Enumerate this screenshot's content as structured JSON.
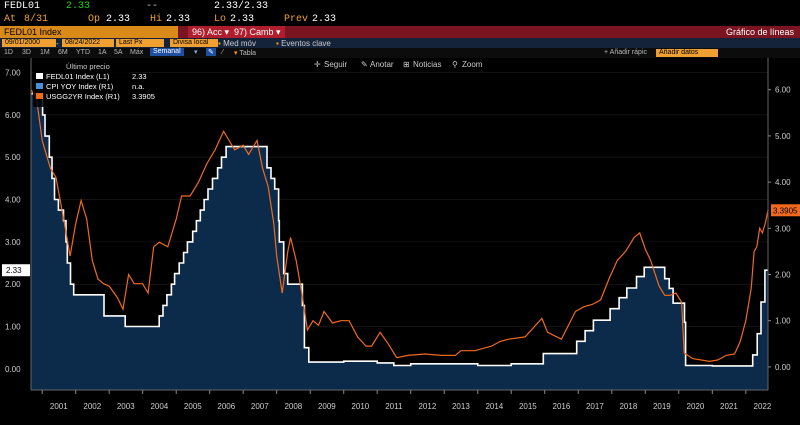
{
  "ticker_bar": {
    "ticker": "FEDL01",
    "price": "2.33",
    "change": "--",
    "bid_ask": "2.33/2.33",
    "asof_label": "At",
    "asof": "8/31",
    "open_label": "Op",
    "open": "2.33",
    "hi_label": "Hi",
    "hi": "2.33",
    "lo_label": "Lo",
    "lo": "2.33",
    "prev_label": "Prev",
    "prev": "2.33"
  },
  "title_bar": {
    "index_name": "FEDL01 Index",
    "actions_label": "96) Acc",
    "change_label": "97) Camb",
    "view_title": "Gráfico de líneas"
  },
  "controls": {
    "start_date": "09/01/2000",
    "end_date": "08/24/2022",
    "price_type": "Last Px",
    "currency": "Divisa local",
    "med_mov": "Med móv",
    "eventos": "Eventos clave"
  },
  "toolbar": {
    "periods": [
      "1D",
      "3D",
      "1M",
      "6M",
      "YTD",
      "1A",
      "5A",
      "Máx"
    ],
    "frequency": "Semanal",
    "table_label": "Tabla",
    "add_quick_label": "Añadir rápic",
    "add_quick_value": "Añadir datos"
  },
  "chart_tools": {
    "seguir": "Seguir",
    "anotar": "Anotar",
    "noticias": "Noticias",
    "zoom": "Zoom"
  },
  "legend": {
    "header": "Último precio",
    "rows": [
      {
        "label": "FEDL01 Index  (L1)",
        "value": "2.33"
      },
      {
        "label": "CPI YOY Index  (R1)",
        "value": "n.a."
      },
      {
        "label": "USGG2YR Index  (R1)",
        "value": "3.3905"
      }
    ]
  },
  "colors": {
    "fed_line": "#ffffff",
    "fed_area": "#0c2a4a",
    "usgg2yr_line": "#f06a1e",
    "cpi_marker": "#4a90d9",
    "badge_orange": "#f06a1e"
  },
  "chart_data": {
    "type": "area",
    "x_axis": {
      "type": "date",
      "range": [
        "2000-09-01",
        "2022-08-31"
      ],
      "tick_labels": [
        "2001",
        "2002",
        "2003",
        "2004",
        "2005",
        "2006",
        "2007",
        "2008",
        "2009",
        "2010",
        "2011",
        "2012",
        "2013",
        "2014",
        "2015",
        "2016",
        "2017",
        "2018",
        "2019",
        "2020",
        "2021",
        "2022"
      ]
    },
    "y_left": {
      "range": [
        -0.5,
        7.25
      ],
      "tick_labels": [
        "7.00",
        "6.00",
        "5.00",
        "4.00",
        "3.00",
        "2.00",
        "1.00",
        "0.00"
      ]
    },
    "y_right": {
      "range": [
        -0.5,
        6.6
      ],
      "tick_labels": [
        "6.00",
        "5.00",
        "4.00",
        "3.00",
        "2.00",
        "1.00",
        "0.00"
      ]
    },
    "last_value_badges": {
      "left": "2.33",
      "right": "3.3905"
    },
    "series": [
      {
        "name": "FEDL01 Index",
        "axis": "left",
        "style": "area",
        "points": [
          [
            "2000-09-01",
            6.5
          ],
          [
            "2001-01-01",
            6.5
          ],
          [
            "2001-01-05",
            6.0
          ],
          [
            "2001-02-01",
            5.5
          ],
          [
            "2001-03-20",
            5.0
          ],
          [
            "2001-04-18",
            4.5
          ],
          [
            "2001-05-15",
            4.0
          ],
          [
            "2001-06-27",
            3.75
          ],
          [
            "2001-08-21",
            3.5
          ],
          [
            "2001-09-17",
            3.0
          ],
          [
            "2001-10-02",
            2.5
          ],
          [
            "2001-11-06",
            2.0
          ],
          [
            "2001-12-11",
            1.75
          ],
          [
            "2002-11-06",
            1.25
          ],
          [
            "2003-06-25",
            1.0
          ],
          [
            "2004-06-30",
            1.25
          ],
          [
            "2004-08-10",
            1.5
          ],
          [
            "2004-09-21",
            1.75
          ],
          [
            "2004-11-10",
            2.0
          ],
          [
            "2004-12-14",
            2.25
          ],
          [
            "2005-02-02",
            2.5
          ],
          [
            "2005-03-22",
            2.75
          ],
          [
            "2005-05-03",
            3.0
          ],
          [
            "2005-06-30",
            3.25
          ],
          [
            "2005-08-09",
            3.5
          ],
          [
            "2005-09-20",
            3.75
          ],
          [
            "2005-11-01",
            4.0
          ],
          [
            "2005-12-13",
            4.25
          ],
          [
            "2006-01-31",
            4.5
          ],
          [
            "2006-03-28",
            4.75
          ],
          [
            "2006-05-10",
            5.0
          ],
          [
            "2006-06-29",
            5.25
          ],
          [
            "2007-09-18",
            4.75
          ],
          [
            "2007-10-31",
            4.5
          ],
          [
            "2007-12-11",
            4.25
          ],
          [
            "2008-01-22",
            3.5
          ],
          [
            "2008-01-30",
            3.0
          ],
          [
            "2008-03-18",
            2.25
          ],
          [
            "2008-04-30",
            2.0
          ],
          [
            "2008-10-08",
            1.5
          ],
          [
            "2008-10-29",
            0.5
          ],
          [
            "2008-12-16",
            0.16
          ],
          [
            "2010-01-01",
            0.18
          ],
          [
            "2011-01-01",
            0.14
          ],
          [
            "2011-07-01",
            0.08
          ],
          [
            "2012-01-01",
            0.12
          ],
          [
            "2013-01-01",
            0.12
          ],
          [
            "2014-01-01",
            0.08
          ],
          [
            "2015-01-01",
            0.12
          ],
          [
            "2015-12-17",
            0.36
          ],
          [
            "2016-12-15",
            0.65
          ],
          [
            "2017-03-16",
            0.9
          ],
          [
            "2017-06-15",
            1.15
          ],
          [
            "2017-12-14",
            1.42
          ],
          [
            "2018-03-22",
            1.68
          ],
          [
            "2018-06-14",
            1.91
          ],
          [
            "2018-09-27",
            2.18
          ],
          [
            "2018-12-20",
            2.4
          ],
          [
            "2019-08-01",
            2.13
          ],
          [
            "2019-09-19",
            1.9
          ],
          [
            "2019-10-31",
            1.55
          ],
          [
            "2020-03-04",
            1.1
          ],
          [
            "2020-03-16",
            0.08
          ],
          [
            "2021-01-01",
            0.07
          ],
          [
            "2022-03-17",
            0.33
          ],
          [
            "2022-05-05",
            0.83
          ],
          [
            "2022-06-16",
            1.58
          ],
          [
            "2022-07-28",
            2.33
          ],
          [
            "2022-08-31",
            2.33
          ]
        ]
      },
      {
        "name": "USGG2YR Index",
        "axis": "right",
        "style": "line",
        "points": [
          [
            "2000-09-01",
            6.0
          ],
          [
            "2000-11-01",
            5.8
          ],
          [
            "2001-01-01",
            4.9
          ],
          [
            "2001-04-01",
            4.3
          ],
          [
            "2001-06-01",
            4.1
          ],
          [
            "2001-09-01",
            3.1
          ],
          [
            "2001-11-01",
            2.4
          ],
          [
            "2002-01-01",
            3.1
          ],
          [
            "2002-03-01",
            3.6
          ],
          [
            "2002-05-01",
            3.2
          ],
          [
            "2002-07-01",
            2.3
          ],
          [
            "2002-09-01",
            1.9
          ],
          [
            "2002-11-01",
            1.8
          ],
          [
            "2003-01-01",
            1.75
          ],
          [
            "2003-04-01",
            1.5
          ],
          [
            "2003-06-01",
            1.25
          ],
          [
            "2003-08-01",
            2.0
          ],
          [
            "2003-10-01",
            1.8
          ],
          [
            "2004-01-01",
            1.8
          ],
          [
            "2004-03-01",
            1.6
          ],
          [
            "2004-05-01",
            2.6
          ],
          [
            "2004-07-01",
            2.7
          ],
          [
            "2004-10-01",
            2.6
          ],
          [
            "2005-01-01",
            3.2
          ],
          [
            "2005-03-01",
            3.7
          ],
          [
            "2005-06-01",
            3.7
          ],
          [
            "2005-09-01",
            4.0
          ],
          [
            "2005-12-01",
            4.4
          ],
          [
            "2006-03-01",
            4.7
          ],
          [
            "2006-06-01",
            5.1
          ],
          [
            "2006-08-01",
            4.9
          ],
          [
            "2006-10-01",
            4.7
          ],
          [
            "2007-01-01",
            4.8
          ],
          [
            "2007-03-01",
            4.6
          ],
          [
            "2007-06-01",
            4.9
          ],
          [
            "2007-08-01",
            4.3
          ],
          [
            "2007-10-01",
            3.9
          ],
          [
            "2007-12-01",
            3.1
          ],
          [
            "2008-01-01",
            2.4
          ],
          [
            "2008-03-01",
            1.6
          ],
          [
            "2008-05-01",
            2.5
          ],
          [
            "2008-06-01",
            2.8
          ],
          [
            "2008-08-01",
            2.3
          ],
          [
            "2008-10-01",
            1.6
          ],
          [
            "2008-12-01",
            0.8
          ],
          [
            "2009-02-01",
            1.0
          ],
          [
            "2009-04-01",
            0.9
          ],
          [
            "2009-06-01",
            1.2
          ],
          [
            "2009-09-01",
            0.95
          ],
          [
            "2009-12-01",
            1.0
          ],
          [
            "2010-03-01",
            1.0
          ],
          [
            "2010-06-01",
            0.65
          ],
          [
            "2010-09-01",
            0.45
          ],
          [
            "2010-11-01",
            0.45
          ],
          [
            "2011-02-01",
            0.75
          ],
          [
            "2011-05-01",
            0.5
          ],
          [
            "2011-08-01",
            0.2
          ],
          [
            "2011-12-01",
            0.25
          ],
          [
            "2012-06-01",
            0.28
          ],
          [
            "2012-12-01",
            0.25
          ],
          [
            "2013-05-01",
            0.25
          ],
          [
            "2013-07-01",
            0.35
          ],
          [
            "2013-12-01",
            0.35
          ],
          [
            "2014-06-01",
            0.45
          ],
          [
            "2014-09-01",
            0.55
          ],
          [
            "2014-12-01",
            0.6
          ],
          [
            "2015-06-01",
            0.65
          ],
          [
            "2015-12-01",
            1.05
          ],
          [
            "2016-02-01",
            0.75
          ],
          [
            "2016-07-01",
            0.6
          ],
          [
            "2016-12-01",
            1.2
          ],
          [
            "2017-03-01",
            1.3
          ],
          [
            "2017-06-01",
            1.35
          ],
          [
            "2017-09-01",
            1.45
          ],
          [
            "2017-12-01",
            1.9
          ],
          [
            "2018-03-01",
            2.3
          ],
          [
            "2018-06-01",
            2.5
          ],
          [
            "2018-09-01",
            2.8
          ],
          [
            "2018-11-01",
            2.9
          ],
          [
            "2019-01-01",
            2.55
          ],
          [
            "2019-03-01",
            2.3
          ],
          [
            "2019-06-01",
            1.75
          ],
          [
            "2019-08-01",
            1.55
          ],
          [
            "2019-10-01",
            1.55
          ],
          [
            "2019-12-01",
            1.6
          ],
          [
            "2020-02-01",
            1.4
          ],
          [
            "2020-03-01",
            0.3
          ],
          [
            "2020-06-01",
            0.18
          ],
          [
            "2020-12-01",
            0.12
          ],
          [
            "2021-03-01",
            0.15
          ],
          [
            "2021-06-01",
            0.25
          ],
          [
            "2021-09-01",
            0.28
          ],
          [
            "2021-11-01",
            0.55
          ],
          [
            "2022-01-01",
            1.0
          ],
          [
            "2022-03-01",
            1.7
          ],
          [
            "2022-04-01",
            2.5
          ],
          [
            "2022-05-01",
            2.6
          ],
          [
            "2022-06-01",
            3.0
          ],
          [
            "2022-07-01",
            2.9
          ],
          [
            "2022-08-01",
            3.1
          ],
          [
            "2022-08-31",
            3.39
          ]
        ]
      }
    ]
  }
}
